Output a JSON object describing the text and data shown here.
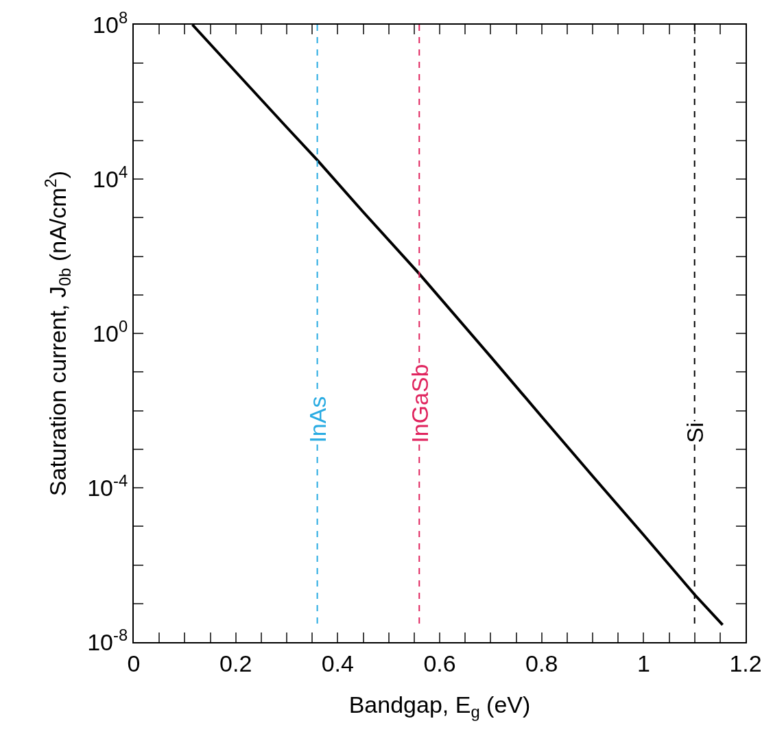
{
  "chart_data": {
    "type": "line",
    "xlabel": "Bandgap, E$_{g}$ (eV)",
    "ylabel": "Saturation current, J$_{0b}$ (nA/cm$^{2}$)",
    "x": [
      0.115,
      0.2,
      0.3,
      0.36,
      0.45,
      0.56,
      0.7,
      0.8,
      0.9,
      1.0,
      1.1,
      1.155
    ],
    "series": [
      {
        "color": "#000000",
        "values": [
          100000000.0,
          6000000.0,
          220000.0,
          31000.0,
          1400.0,
          35,
          0.25,
          0.007,
          0.0002,
          6e-06,
          1.7e-07,
          2.8e-08
        ]
      }
    ],
    "log": "y",
    "xlim": [
      0,
      1.2
    ],
    "xticks": [
      0,
      {
        "value": 0.05,
        "label": null
      },
      {
        "value": 0.1,
        "label": null
      },
      {
        "value": 0.15,
        "label": null
      },
      0.2,
      {
        "value": 0.25,
        "label": null
      },
      {
        "value": 0.3,
        "label": null
      },
      {
        "value": 0.35,
        "label": null
      },
      0.4,
      {
        "value": 0.45,
        "label": null
      },
      {
        "value": 0.5,
        "label": null
      },
      {
        "value": 0.55,
        "label": null
      },
      0.6,
      {
        "value": 0.65,
        "label": null
      },
      {
        "value": 0.7,
        "label": null
      },
      {
        "value": 0.75,
        "label": null
      },
      0.8,
      {
        "value": 0.85,
        "label": null
      },
      {
        "value": 0.9,
        "label": null
      },
      {
        "value": 0.95,
        "label": null
      },
      1,
      {
        "value": 1.05,
        "label": null
      },
      {
        "value": 1.1,
        "label": null
      },
      {
        "value": 1.15,
        "label": null
      },
      1.2
    ],
    "ylim": [
      1e-08,
      100000000.0
    ],
    "yticks": [
      {
        "value": 1e-08,
        "label": "10$^{-8}$"
      },
      {
        "value": 1e-07,
        "label": null
      },
      {
        "value": 1e-06,
        "label": null
      },
      {
        "value": 1e-05,
        "label": null
      },
      {
        "value": 0.0001,
        "label": "10$^{-4}$"
      },
      {
        "value": 0.001,
        "label": null
      },
      {
        "value": 0.01,
        "label": null
      },
      {
        "value": 0.1,
        "label": null
      },
      {
        "value": 1,
        "label": "10$^{0}$"
      },
      {
        "value": 10,
        "label": null
      },
      {
        "value": 100,
        "label": null
      },
      {
        "value": 1000,
        "label": null
      },
      {
        "value": 10000.0,
        "label": "10$^{4}$"
      },
      {
        "value": 100000.0,
        "label": null
      },
      {
        "value": 1000000.0,
        "label": null
      },
      {
        "value": 10000000.0,
        "label": null
      },
      {
        "value": 100000000.0,
        "label": "10$^{8}$"
      }
    ],
    "ref_lines": [
      {
        "axis": "x",
        "value": 0.36,
        "label": "InAs",
        "color": "#29abe2",
        "line_style": "dashed"
      },
      {
        "axis": "x",
        "value": 0.56,
        "label": "InGaSb",
        "color": "#e0245e",
        "line_style": "dashed"
      },
      {
        "axis": "x",
        "value": 1.1,
        "label": "Si",
        "color": "#000000",
        "line_style": "dashed"
      }
    ],
    "grid": false,
    "marker": "none",
    "line_style": "solid"
  }
}
